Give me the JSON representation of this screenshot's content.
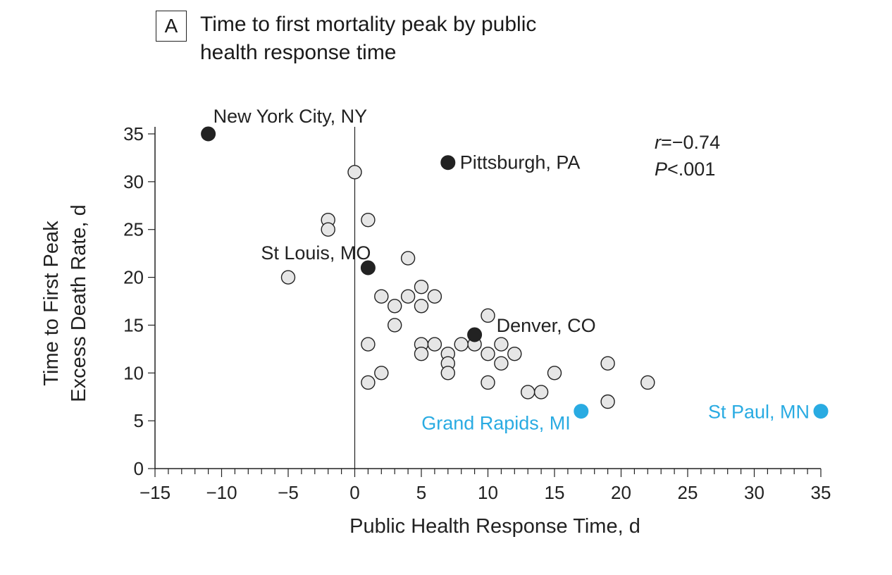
{
  "panel": {
    "letter": "A",
    "title": "Time to first mortality peak by public health response time"
  },
  "chart_data": {
    "type": "scatter",
    "title": "Time to first mortality peak by public health response time",
    "xlabel": "Public Health Response Time, d",
    "ylabel_lines": [
      "Time to First Peak",
      "Excess Death Rate, d"
    ],
    "xlim": [
      -15,
      35
    ],
    "ylim": [
      0,
      35
    ],
    "xticks": [
      -15,
      -10,
      -5,
      0,
      5,
      10,
      15,
      20,
      25,
      30,
      35
    ],
    "yticks": [
      0,
      5,
      10,
      15,
      20,
      25,
      30,
      35
    ],
    "xtick_labels": [
      "−15",
      "−10",
      "−5",
      "0",
      "5",
      "10",
      "15",
      "20",
      "25",
      "30",
      "35"
    ],
    "ytick_labels": [
      "0",
      "5",
      "10",
      "15",
      "20",
      "25",
      "30",
      "35"
    ],
    "grid": false,
    "reference_line_x": 0,
    "stats": {
      "r_symbol": "r",
      "r_value": "=−0.74",
      "p_symbol": "P",
      "p_value": "<.001"
    },
    "colors": {
      "highlight_dark": "#222222",
      "highlight_blue": "#29abe2",
      "other_fill": "#e6e6e6",
      "other_stroke": "#222222"
    },
    "other_cities": [
      {
        "x": 0,
        "y": 31
      },
      {
        "x": -2,
        "y": 26
      },
      {
        "x": -2,
        "y": 25
      },
      {
        "x": 1,
        "y": 26
      },
      {
        "x": -5,
        "y": 20
      },
      {
        "x": 4,
        "y": 22
      },
      {
        "x": 2,
        "y": 18
      },
      {
        "x": 4,
        "y": 18
      },
      {
        "x": 5,
        "y": 19
      },
      {
        "x": 6,
        "y": 18
      },
      {
        "x": 3,
        "y": 17
      },
      {
        "x": 5,
        "y": 17
      },
      {
        "x": 3,
        "y": 15
      },
      {
        "x": 10,
        "y": 16
      },
      {
        "x": 1,
        "y": 13
      },
      {
        "x": 5,
        "y": 13
      },
      {
        "x": 6,
        "y": 13
      },
      {
        "x": 8,
        "y": 13
      },
      {
        "x": 9,
        "y": 13
      },
      {
        "x": 11,
        "y": 13
      },
      {
        "x": 5,
        "y": 12
      },
      {
        "x": 7,
        "y": 12
      },
      {
        "x": 10,
        "y": 12
      },
      {
        "x": 12,
        "y": 12
      },
      {
        "x": 7,
        "y": 11
      },
      {
        "x": 11,
        "y": 11
      },
      {
        "x": 19,
        "y": 11
      },
      {
        "x": 2,
        "y": 10
      },
      {
        "x": 7,
        "y": 10
      },
      {
        "x": 15,
        "y": 10
      },
      {
        "x": 1,
        "y": 9
      },
      {
        "x": 10,
        "y": 9
      },
      {
        "x": 22,
        "y": 9
      },
      {
        "x": 13,
        "y": 8
      },
      {
        "x": 14,
        "y": 8
      },
      {
        "x": 19,
        "y": 7
      }
    ],
    "highlighted_cities": [
      {
        "name": "New York City, NY",
        "x": -11,
        "y": 35,
        "color": "dark",
        "label_pos": "above-right"
      },
      {
        "name": "Pittsburgh, PA",
        "x": 7,
        "y": 32,
        "color": "dark",
        "label_pos": "right"
      },
      {
        "name": "St Louis, MO",
        "x": 1,
        "y": 21,
        "color": "dark",
        "label_pos": "above-left"
      },
      {
        "name": "Denver, CO",
        "x": 9,
        "y": 14,
        "color": "dark",
        "label_pos": "above-right"
      },
      {
        "name": "Grand Rapids, MI",
        "x": 17,
        "y": 6,
        "color": "blue",
        "label_pos": "below-left"
      },
      {
        "name": "St Paul, MN",
        "x": 35,
        "y": 6,
        "color": "blue",
        "label_pos": "left"
      }
    ]
  }
}
